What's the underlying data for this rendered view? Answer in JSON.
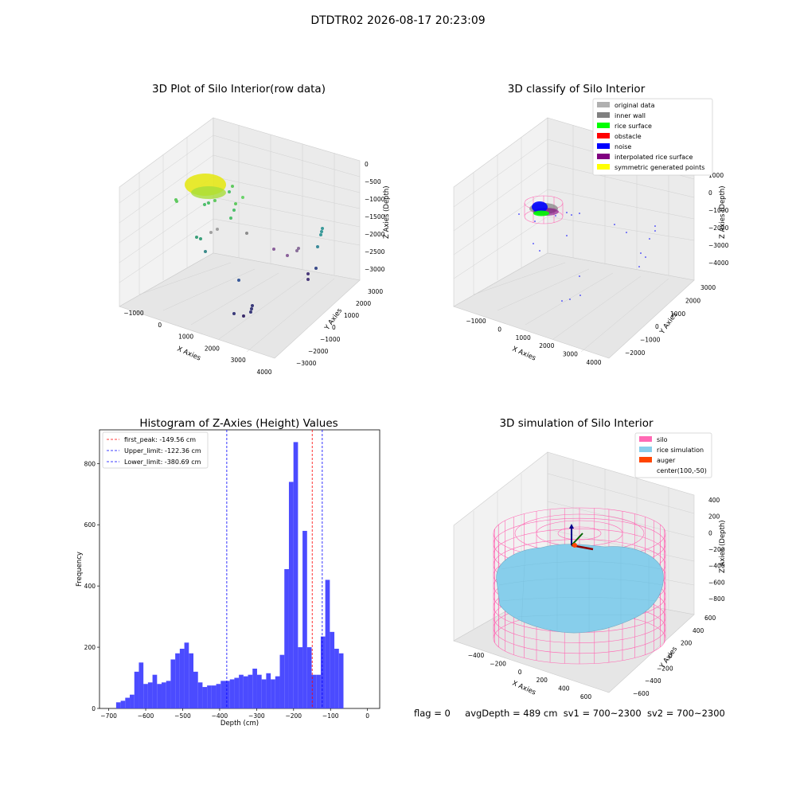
{
  "suptitle": "DTDTR02 2026-08-17 20:23:09",
  "status_line": {
    "flag": "flag = 0",
    "avg_depth": "avgDepth = 489 cm",
    "sv1": "sv1 = 700~2300",
    "sv2": "sv2 = 700~2300"
  },
  "colors": {
    "hist_bar": "#4b4bff",
    "first_peak": "#ff0000",
    "limit_lines": "#0000ff",
    "silo": "#ff69b4",
    "rice_simulation": "#87ceeb",
    "auger": "#ff4500",
    "original_data": "#b0b0b0",
    "inner_wall": "#808080",
    "rice_surface": "#00ff00",
    "obstacle": "#ff0000",
    "noise": "#0000ff",
    "interpolated_rice_surface": "#800080",
    "symmetric_generated_points": "#ffff00"
  },
  "panels": {
    "raw3d": {
      "title": "3D Plot of Silo Interior(row data)",
      "xlabel": "X Axies",
      "ylabel": "Y Axies",
      "zlabel": "Z Axies (Depth)",
      "xticks": [
        "−1000",
        "0",
        "1000",
        "2000",
        "3000",
        "4000"
      ],
      "yticks": [
        "−3000",
        "−2000",
        "−1000",
        "0",
        "1000",
        "2000",
        "3000"
      ],
      "zticks": [
        "0",
        "−500",
        "−1000",
        "−1500",
        "−2000",
        "−2500",
        "−3000"
      ]
    },
    "classify3d": {
      "title": "3D classify of Silo Interior",
      "xlabel": "X Axies",
      "ylabel": "Y Axies",
      "zlabel": "Z Axies (Depth)",
      "xticks": [
        "−1000",
        "0",
        "1000",
        "2000",
        "3000",
        "4000"
      ],
      "yticks": [
        "−2000",
        "−1000",
        "0",
        "1000",
        "2000",
        "3000"
      ],
      "zticks": [
        "1000",
        "0",
        "−1000",
        "−2000",
        "−3000",
        "−4000"
      ],
      "legend": [
        {
          "label": "original data",
          "color": "#b0b0b0"
        },
        {
          "label": "inner wall",
          "color": "#808080"
        },
        {
          "label": "rice surface",
          "color": "#00ff00"
        },
        {
          "label": "obstacle",
          "color": "#ff0000"
        },
        {
          "label": "noise",
          "color": "#0000ff"
        },
        {
          "label": "interpolated rice surface",
          "color": "#800080"
        },
        {
          "label": "symmetric generated points",
          "color": "#ffff00"
        }
      ]
    },
    "sim3d": {
      "title": "3D simulation of Silo Interior",
      "xlabel": "X Axies",
      "ylabel": "Y Axies",
      "zlabel": "Z Axies (Depth)",
      "xticks": [
        "−400",
        "−200",
        "0",
        "200",
        "400",
        "600"
      ],
      "yticks": [
        "−600",
        "−400",
        "−200",
        "0",
        "200",
        "400",
        "600"
      ],
      "zticks": [
        "400",
        "200",
        "0",
        "−200",
        "−400",
        "−600",
        "−800"
      ],
      "legend": [
        {
          "label": "silo",
          "color": "#ff69b4"
        },
        {
          "label": "rice simulation",
          "color": "#87ceeb"
        },
        {
          "label": "auger",
          "color": "#ff4500"
        },
        {
          "label": "center(100,-50)",
          "color": ""
        }
      ]
    }
  },
  "chart_data": {
    "type": "bar",
    "title": "Histogram of Z-Axies (Height) Values",
    "xlabel": "Depth (cm)",
    "ylabel": "Frequency",
    "xlim": [
      -725,
      33
    ],
    "ylim": [
      0,
      910
    ],
    "xticks": [
      -700,
      -600,
      -500,
      -400,
      -300,
      -200,
      -100,
      0
    ],
    "yticks": [
      0,
      200,
      400,
      600,
      800
    ],
    "bin_width": 12.3,
    "bin_start": -680,
    "values": [
      20,
      25,
      35,
      45,
      120,
      150,
      80,
      85,
      110,
      80,
      85,
      90,
      160,
      180,
      195,
      215,
      180,
      120,
      85,
      70,
      75,
      75,
      80,
      90,
      90,
      95,
      100,
      110,
      105,
      110,
      130,
      110,
      95,
      115,
      95,
      105,
      175,
      455,
      740,
      870,
      200,
      580,
      200,
      110,
      110,
      235,
      420,
      250,
      195,
      180
    ],
    "vlines": [
      {
        "label": "first_peak: -149.56 cm",
        "x": -149.56,
        "color": "#ff0000"
      },
      {
        "label": "Upper_limit: -122.36 cm",
        "x": -122.36,
        "color": "#0000ff"
      },
      {
        "label": "Lower_limit: -380.69 cm",
        "x": -380.69,
        "color": "#0000ff"
      }
    ],
    "grid": false,
    "legend_position": "top-left"
  }
}
